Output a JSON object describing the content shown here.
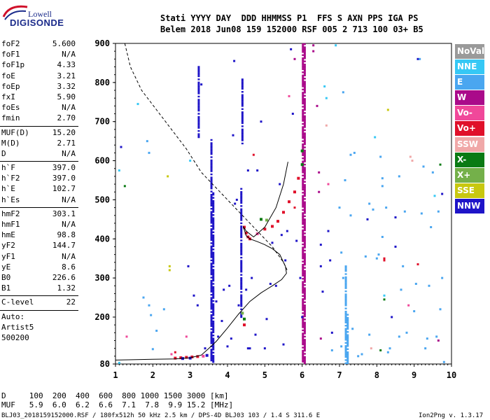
{
  "logo": {
    "line1": "Lowell",
    "line2": "DIGISONDE"
  },
  "header": {
    "row1": "Stati YYYY DAY  DDD HHMMSS P1  FFS S AXN PPS IGA PS",
    "row2": "Belem 2018 Jun08 159 152000 RSF 005 2 713 100 03+ B5"
  },
  "params_group1": [
    {
      "name": "foF2",
      "value": "5.600"
    },
    {
      "name": "foF1",
      "value": "N/A"
    },
    {
      "name": "foF1p",
      "value": "4.33"
    },
    {
      "name": "foE",
      "value": "3.21"
    },
    {
      "name": "foEp",
      "value": "3.32"
    },
    {
      "name": "fxI",
      "value": "5.90"
    },
    {
      "name": "foEs",
      "value": "N/A"
    },
    {
      "name": "fmin",
      "value": "2.70"
    }
  ],
  "params_group2": [
    {
      "name": "MUF(D)",
      "value": "15.20"
    },
    {
      "name": "M(D)",
      "value": "2.71"
    },
    {
      "name": "D",
      "value": "N/A"
    }
  ],
  "params_group3": [
    {
      "name": "h`F",
      "value": "397.0"
    },
    {
      "name": "h`F2",
      "value": "397.0"
    },
    {
      "name": "h`E",
      "value": "102.7"
    },
    {
      "name": "h`Es",
      "value": "N/A"
    }
  ],
  "params_group4": [
    {
      "name": "hmF2",
      "value": "303.1"
    },
    {
      "name": "hmF1",
      "value": "N/A"
    },
    {
      "name": "hmE",
      "value": "98.8"
    },
    {
      "name": "yF2",
      "value": "144.7"
    },
    {
      "name": "yF1",
      "value": "N/A"
    },
    {
      "name": "yE",
      "value": "8.6"
    },
    {
      "name": "B0",
      "value": "226.6"
    },
    {
      "name": "B1",
      "value": "1.32"
    }
  ],
  "clevel": {
    "name": "C-level",
    "value": "22"
  },
  "auto": {
    "l1": "Auto:",
    "l2": "Artist5",
    "l3": "500200"
  },
  "legend": [
    {
      "label": "NoVal",
      "color": "#9a9a9a"
    },
    {
      "label": "NNE",
      "color": "#36c8f5"
    },
    {
      "label": "E",
      "color": "#4aa6f0"
    },
    {
      "label": "W",
      "color": "#aa0a8a"
    },
    {
      "label": "Vo-",
      "color": "#f0489a"
    },
    {
      "label": "Vo+",
      "color": "#e0102a"
    },
    {
      "label": "SSW",
      "color": "#f0a8a8"
    },
    {
      "label": "X-",
      "color": "#0a7a14"
    },
    {
      "label": "X+",
      "color": "#74b04a"
    },
    {
      "label": "SSE",
      "color": "#c8c810"
    },
    {
      "label": "NNW",
      "color": "#1e14c8"
    }
  ],
  "muf_table": {
    "row_d": "D     100  200  400  600  800 1000 1500 3000 [km]",
    "row_muf": "MUF   5.9  6.0  6.2  6.6  7.1  7.8  9.9 15.2 [MHz]"
  },
  "footer": {
    "left": "BLJ03_2018159152000.RSF / 180fx512h 50 kHz 2.5 km / DPS-4D BLJ03 103 / 1.4 S 311.6 E",
    "right": "Ion2Png v. 1.3.17"
  },
  "chart_data": {
    "type": "scatter",
    "x_ticks": [
      "1",
      "2",
      "3",
      "4",
      "5",
      "6",
      "7",
      "8",
      "9",
      "10"
    ],
    "y_ticks": [
      "80",
      "200",
      "300",
      "400",
      "500",
      "600",
      "700",
      "800",
      "900"
    ],
    "xlim": [
      1,
      10
    ],
    "ylim": [
      80,
      900
    ],
    "grid": false,
    "legend_position": "right",
    "trace_solid": [
      [
        1.0,
        90
      ],
      [
        2.0,
        92
      ],
      [
        2.6,
        93
      ],
      [
        3.0,
        96
      ],
      [
        3.3,
        103
      ],
      [
        3.5,
        120
      ],
      [
        3.7,
        138
      ],
      [
        4.0,
        172
      ],
      [
        4.3,
        208
      ],
      [
        4.6,
        240
      ],
      [
        4.9,
        262
      ],
      [
        5.2,
        280
      ],
      [
        5.45,
        296
      ],
      [
        5.58,
        312
      ],
      [
        5.55,
        330
      ],
      [
        5.4,
        360
      ],
      [
        5.2,
        375
      ],
      [
        5.0,
        385
      ],
      [
        4.8,
        393
      ],
      [
        4.6,
        400
      ],
      [
        4.5,
        408
      ],
      [
        4.42,
        432
      ],
      [
        4.5,
        420
      ],
      [
        4.7,
        405
      ],
      [
        5.0,
        430
      ],
      [
        5.3,
        480
      ],
      [
        5.5,
        540
      ],
      [
        5.62,
        597
      ]
    ],
    "trace_dashed": [
      [
        1.25,
        900
      ],
      [
        1.4,
        840
      ],
      [
        1.7,
        780
      ],
      [
        2.1,
        730
      ],
      [
        2.5,
        680
      ],
      [
        2.9,
        630
      ],
      [
        3.3,
        570
      ],
      [
        3.8,
        520
      ],
      [
        4.3,
        470
      ],
      [
        4.8,
        420
      ],
      [
        5.2,
        380
      ],
      [
        5.5,
        340
      ],
      [
        5.6,
        320
      ]
    ],
    "trace_points": [
      {
        "x": 4.45,
        "y": 430,
        "c": "Vo+"
      },
      {
        "x": 4.5,
        "y": 415,
        "c": "Vo+"
      },
      {
        "x": 4.55,
        "y": 405,
        "c": "Vo+"
      },
      {
        "x": 4.6,
        "y": 400,
        "c": "Vo+"
      },
      {
        "x": 4.8,
        "y": 413,
        "c": "Vo-"
      },
      {
        "x": 5.0,
        "y": 425,
        "c": "Vo+"
      },
      {
        "x": 5.2,
        "y": 432,
        "c": "Vo+"
      },
      {
        "x": 5.35,
        "y": 445,
        "c": "Vo+"
      },
      {
        "x": 5.5,
        "y": 468,
        "c": "Vo+"
      },
      {
        "x": 5.65,
        "y": 495,
        "c": "Vo+"
      },
      {
        "x": 5.8,
        "y": 520,
        "c": "Vo+"
      },
      {
        "x": 5.9,
        "y": 555,
        "c": "Vo+"
      },
      {
        "x": 6.0,
        "y": 590,
        "c": "X-"
      },
      {
        "x": 6.0,
        "y": 625,
        "c": "X-"
      },
      {
        "x": 4.9,
        "y": 450,
        "c": "X-"
      },
      {
        "x": 5.05,
        "y": 448,
        "c": "X+"
      },
      {
        "x": 4.45,
        "y": 195,
        "c": "X-"
      },
      {
        "x": 4.4,
        "y": 210,
        "c": "X+"
      },
      {
        "x": 2.75,
        "y": 96,
        "c": "Vo+"
      },
      {
        "x": 2.9,
        "y": 97,
        "c": "Vo+"
      },
      {
        "x": 3.05,
        "y": 98,
        "c": "Vo+"
      },
      {
        "x": 3.2,
        "y": 99,
        "c": "Vo+"
      },
      {
        "x": 2.6,
        "y": 95,
        "c": "Vo+"
      },
      {
        "x": 3.35,
        "y": 100,
        "c": "Vo-"
      },
      {
        "x": 3.45,
        "y": 102,
        "c": "NNW"
      },
      {
        "x": 3.0,
        "y": 95,
        "c": "NNW"
      },
      {
        "x": 2.8,
        "y": 94,
        "c": "NNW"
      },
      {
        "x": 4.45,
        "y": 180,
        "c": "Vo+"
      }
    ],
    "vertical_bands": [
      {
        "x": 3.57,
        "y0": 85,
        "y1": 660,
        "c": "NNW"
      },
      {
        "x": 3.62,
        "y0": 85,
        "y1": 520,
        "c": "NNW"
      },
      {
        "x": 3.23,
        "y0": 660,
        "y1": 840,
        "c": "NNW"
      },
      {
        "x": 4.37,
        "y0": 200,
        "y1": 530,
        "c": "NNW"
      },
      {
        "x": 4.4,
        "y0": 640,
        "y1": 810,
        "c": "NNW"
      },
      {
        "x": 6.02,
        "y0": 82,
        "y1": 900,
        "c": "W"
      },
      {
        "x": 6.07,
        "y0": 82,
        "y1": 900,
        "c": "W"
      },
      {
        "x": 7.17,
        "y0": 82,
        "y1": 330,
        "c": "E"
      },
      {
        "x": 7.22,
        "y0": 82,
        "y1": 210,
        "c": "E"
      }
    ],
    "noise": [
      {
        "x": 1.1,
        "y": 83,
        "c": "NNE"
      },
      {
        "x": 1.1,
        "y": 575,
        "c": "NNE"
      },
      {
        "x": 1.15,
        "y": 635,
        "c": "NNW"
      },
      {
        "x": 1.25,
        "y": 535,
        "c": "X-"
      },
      {
        "x": 1.3,
        "y": 150,
        "c": "Vo-"
      },
      {
        "x": 1.6,
        "y": 745,
        "c": "NNE"
      },
      {
        "x": 1.75,
        "y": 250,
        "c": "E"
      },
      {
        "x": 1.85,
        "y": 650,
        "c": "E"
      },
      {
        "x": 1.9,
        "y": 620,
        "c": "E"
      },
      {
        "x": 1.9,
        "y": 230,
        "c": "E"
      },
      {
        "x": 1.95,
        "y": 205,
        "c": "E"
      },
      {
        "x": 2.0,
        "y": 118,
        "c": "E"
      },
      {
        "x": 2.1,
        "y": 165,
        "c": "E"
      },
      {
        "x": 2.3,
        "y": 220,
        "c": "E"
      },
      {
        "x": 2.4,
        "y": 560,
        "c": "SSE"
      },
      {
        "x": 2.45,
        "y": 330,
        "c": "SSE"
      },
      {
        "x": 2.45,
        "y": 320,
        "c": "SSE"
      },
      {
        "x": 2.5,
        "y": 105,
        "c": "Vo-"
      },
      {
        "x": 2.6,
        "y": 110,
        "c": "Vo+"
      },
      {
        "x": 2.9,
        "y": 150,
        "c": "Vo-"
      },
      {
        "x": 2.95,
        "y": 330,
        "c": "NNW"
      },
      {
        "x": 3.0,
        "y": 600,
        "c": "NNE"
      },
      {
        "x": 3.1,
        "y": 255,
        "c": "NNW"
      },
      {
        "x": 3.2,
        "y": 230,
        "c": "NNW"
      },
      {
        "x": 3.3,
        "y": 795,
        "c": "NNW"
      },
      {
        "x": 3.4,
        "y": 120,
        "c": "NNW"
      },
      {
        "x": 3.7,
        "y": 240,
        "c": "NNW"
      },
      {
        "x": 3.75,
        "y": 150,
        "c": "NNW"
      },
      {
        "x": 3.85,
        "y": 190,
        "c": "NNW"
      },
      {
        "x": 3.9,
        "y": 270,
        "c": "NNW"
      },
      {
        "x": 4.0,
        "y": 125,
        "c": "NNW"
      },
      {
        "x": 4.05,
        "y": 280,
        "c": "NNW"
      },
      {
        "x": 4.1,
        "y": 145,
        "c": "NNW"
      },
      {
        "x": 4.15,
        "y": 665,
        "c": "NNW"
      },
      {
        "x": 4.18,
        "y": 855,
        "c": "NNW"
      },
      {
        "x": 4.2,
        "y": 490,
        "c": "NNW"
      },
      {
        "x": 4.25,
        "y": 500,
        "c": "NNW"
      },
      {
        "x": 4.3,
        "y": 230,
        "c": "NNW"
      },
      {
        "x": 4.5,
        "y": 270,
        "c": "NNW"
      },
      {
        "x": 4.55,
        "y": 120,
        "c": "NNW"
      },
      {
        "x": 4.55,
        "y": 575,
        "c": "NNW"
      },
      {
        "x": 4.6,
        "y": 120,
        "c": "NNW"
      },
      {
        "x": 4.65,
        "y": 300,
        "c": "NNW"
      },
      {
        "x": 4.7,
        "y": 615,
        "c": "Vo+"
      },
      {
        "x": 4.75,
        "y": 155,
        "c": "NNW"
      },
      {
        "x": 4.8,
        "y": 575,
        "c": "NNW"
      },
      {
        "x": 4.9,
        "y": 700,
        "c": "NNW"
      },
      {
        "x": 5.0,
        "y": 120,
        "c": "NNW"
      },
      {
        "x": 5.05,
        "y": 195,
        "c": "NNW"
      },
      {
        "x": 5.15,
        "y": 285,
        "c": "NNW"
      },
      {
        "x": 5.2,
        "y": 390,
        "c": "NNW"
      },
      {
        "x": 5.3,
        "y": 280,
        "c": "NNW"
      },
      {
        "x": 5.4,
        "y": 540,
        "c": "NNW"
      },
      {
        "x": 5.45,
        "y": 410,
        "c": "NNW"
      },
      {
        "x": 5.5,
        "y": 130,
        "c": "NNW"
      },
      {
        "x": 5.55,
        "y": 345,
        "c": "NNW"
      },
      {
        "x": 5.6,
        "y": 420,
        "c": "NNW"
      },
      {
        "x": 5.65,
        "y": 765,
        "c": "Vo-"
      },
      {
        "x": 5.7,
        "y": 885,
        "c": "NNW"
      },
      {
        "x": 5.75,
        "y": 720,
        "c": "NNW"
      },
      {
        "x": 5.8,
        "y": 860,
        "c": "W"
      },
      {
        "x": 5.8,
        "y": 480,
        "c": "Vo+"
      },
      {
        "x": 5.85,
        "y": 395,
        "c": "NNW"
      },
      {
        "x": 5.95,
        "y": 300,
        "c": "NNW"
      },
      {
        "x": 6.0,
        "y": 200,
        "c": "NNW"
      },
      {
        "x": 6.3,
        "y": 895,
        "c": "W"
      },
      {
        "x": 6.3,
        "y": 880,
        "c": "W"
      },
      {
        "x": 6.4,
        "y": 740,
        "c": "W"
      },
      {
        "x": 6.45,
        "y": 570,
        "c": "W"
      },
      {
        "x": 6.45,
        "y": 520,
        "c": "W"
      },
      {
        "x": 6.5,
        "y": 385,
        "c": "NNW"
      },
      {
        "x": 6.5,
        "y": 330,
        "c": "NNW"
      },
      {
        "x": 6.5,
        "y": 145,
        "c": "W"
      },
      {
        "x": 6.55,
        "y": 265,
        "c": "NNW"
      },
      {
        "x": 6.6,
        "y": 790,
        "c": "NNE"
      },
      {
        "x": 6.65,
        "y": 760,
        "c": "NNE"
      },
      {
        "x": 6.65,
        "y": 690,
        "c": "SSW"
      },
      {
        "x": 6.7,
        "y": 540,
        "c": "Vo-"
      },
      {
        "x": 6.7,
        "y": 420,
        "c": "NNW"
      },
      {
        "x": 6.75,
        "y": 345,
        "c": "NNW"
      },
      {
        "x": 6.8,
        "y": 115,
        "c": "E"
      },
      {
        "x": 6.8,
        "y": 160,
        "c": "NNW"
      },
      {
        "x": 6.9,
        "y": 895,
        "c": "NNE"
      },
      {
        "x": 7.0,
        "y": 480,
        "c": "E"
      },
      {
        "x": 7.05,
        "y": 365,
        "c": "E"
      },
      {
        "x": 7.05,
        "y": 125,
        "c": "E"
      },
      {
        "x": 7.1,
        "y": 300,
        "c": "E"
      },
      {
        "x": 7.1,
        "y": 775,
        "c": "E"
      },
      {
        "x": 7.15,
        "y": 550,
        "c": "E"
      },
      {
        "x": 7.3,
        "y": 460,
        "c": "E"
      },
      {
        "x": 7.3,
        "y": 615,
        "c": "E"
      },
      {
        "x": 7.35,
        "y": 170,
        "c": "E"
      },
      {
        "x": 7.4,
        "y": 620,
        "c": "E"
      },
      {
        "x": 7.5,
        "y": 100,
        "c": "E"
      },
      {
        "x": 7.6,
        "y": 105,
        "c": "E"
      },
      {
        "x": 7.7,
        "y": 355,
        "c": "E"
      },
      {
        "x": 7.75,
        "y": 450,
        "c": "NNW"
      },
      {
        "x": 7.8,
        "y": 490,
        "c": "E"
      },
      {
        "x": 7.8,
        "y": 155,
        "c": "E"
      },
      {
        "x": 7.85,
        "y": 120,
        "c": "SSW"
      },
      {
        "x": 7.9,
        "y": 475,
        "c": "E"
      },
      {
        "x": 7.95,
        "y": 660,
        "c": "NNE"
      },
      {
        "x": 8.0,
        "y": 350,
        "c": "E"
      },
      {
        "x": 8.05,
        "y": 360,
        "c": "E"
      },
      {
        "x": 8.1,
        "y": 610,
        "c": "E"
      },
      {
        "x": 8.15,
        "y": 555,
        "c": "E"
      },
      {
        "x": 8.15,
        "y": 535,
        "c": "E"
      },
      {
        "x": 8.15,
        "y": 405,
        "c": "E"
      },
      {
        "x": 8.2,
        "y": 350,
        "c": "Vo+"
      },
      {
        "x": 8.2,
        "y": 345,
        "c": "Vo+"
      },
      {
        "x": 8.2,
        "y": 255,
        "c": "NNE"
      },
      {
        "x": 8.2,
        "y": 245,
        "c": "X-"
      },
      {
        "x": 8.25,
        "y": 480,
        "c": "E"
      },
      {
        "x": 8.3,
        "y": 730,
        "c": "SSE"
      },
      {
        "x": 8.3,
        "y": 110,
        "c": "E"
      },
      {
        "x": 8.35,
        "y": 120,
        "c": "E"
      },
      {
        "x": 8.4,
        "y": 200,
        "c": "NNW"
      },
      {
        "x": 8.5,
        "y": 455,
        "c": "NNW"
      },
      {
        "x": 8.5,
        "y": 380,
        "c": "NNW"
      },
      {
        "x": 8.6,
        "y": 560,
        "c": "E"
      },
      {
        "x": 8.6,
        "y": 150,
        "c": "E"
      },
      {
        "x": 8.65,
        "y": 270,
        "c": "E"
      },
      {
        "x": 8.7,
        "y": 330,
        "c": "E"
      },
      {
        "x": 8.75,
        "y": 470,
        "c": "E"
      },
      {
        "x": 8.8,
        "y": 160,
        "c": "E"
      },
      {
        "x": 8.85,
        "y": 230,
        "c": "Vo-"
      },
      {
        "x": 8.9,
        "y": 610,
        "c": "SSW"
      },
      {
        "x": 8.95,
        "y": 600,
        "c": "SSW"
      },
      {
        "x": 9.0,
        "y": 215,
        "c": "E"
      },
      {
        "x": 9.05,
        "y": 285,
        "c": "E"
      },
      {
        "x": 9.1,
        "y": 860,
        "c": "NNW"
      },
      {
        "x": 9.15,
        "y": 860,
        "c": "E"
      },
      {
        "x": 9.2,
        "y": 465,
        "c": "E"
      },
      {
        "x": 9.25,
        "y": 585,
        "c": "E"
      },
      {
        "x": 9.3,
        "y": 120,
        "c": "E"
      },
      {
        "x": 9.35,
        "y": 145,
        "c": "E"
      },
      {
        "x": 9.4,
        "y": 280,
        "c": "E"
      },
      {
        "x": 9.45,
        "y": 430,
        "c": "E"
      },
      {
        "x": 9.5,
        "y": 570,
        "c": "E"
      },
      {
        "x": 9.55,
        "y": 510,
        "c": "NNE"
      },
      {
        "x": 9.6,
        "y": 150,
        "c": "E"
      },
      {
        "x": 9.65,
        "y": 470,
        "c": "E"
      },
      {
        "x": 9.7,
        "y": 220,
        "c": "E"
      },
      {
        "x": 9.75,
        "y": 300,
        "c": "E"
      },
      {
        "x": 9.75,
        "y": 515,
        "c": "NNW"
      },
      {
        "x": 9.8,
        "y": 85,
        "c": "E"
      },
      {
        "x": 9.7,
        "y": 590,
        "c": "X-"
      },
      {
        "x": 9.65,
        "y": 140,
        "c": "W"
      },
      {
        "x": 9.1,
        "y": 335,
        "c": "Vo+"
      },
      {
        "x": 8.1,
        "y": 115,
        "c": "X-"
      }
    ]
  }
}
